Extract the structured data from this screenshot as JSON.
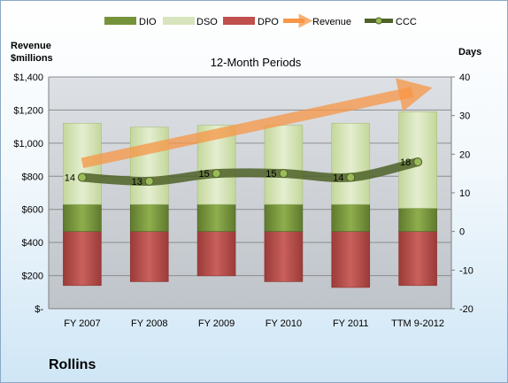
{
  "company": "Rollins",
  "chart_data": {
    "type": "bar",
    "subtype": "stacked-bar-with-lines",
    "title": "12-Month Periods",
    "ylabel_left": [
      "Revenue",
      "$millions"
    ],
    "ylabel_right": "Days",
    "categories": [
      "FY 2007",
      "FY 2008",
      "FY 2009",
      "FY 2010",
      "FY 2011",
      "TTM 9-2012"
    ],
    "y_left": {
      "lim": [
        0,
        1400
      ],
      "ticks": [
        0,
        200,
        400,
        600,
        800,
        1000,
        1200,
        1400
      ],
      "tick_labels": [
        "$-",
        "$200",
        "$400",
        "$600",
        "$800",
        "$1,000",
        "$1,200",
        "$1,400"
      ]
    },
    "y_right": {
      "lim": [
        -20,
        40
      ],
      "ticks": [
        -20,
        -10,
        0,
        10,
        20,
        30,
        40
      ],
      "tick_labels": [
        "-20",
        "-10",
        "0",
        "10",
        "20",
        "30",
        "40"
      ]
    },
    "legend": [
      "DIO",
      "DSO",
      "DPO",
      "Revenue",
      "CCC"
    ],
    "legend_position": "top",
    "colors": {
      "DIO": "#76933c",
      "DSO": "#d7e4bd",
      "DPO": "#c0504d",
      "Revenue": "#f79646",
      "CCC": "#4f6228"
    },
    "bars": [
      {
        "category": "FY 2007",
        "DPO": [
          -14,
          0
        ],
        "DIO": [
          0,
          7
        ],
        "DSO": [
          7,
          28
        ]
      },
      {
        "category": "FY 2008",
        "DPO": [
          -13,
          0
        ],
        "DIO": [
          0,
          7
        ],
        "DSO": [
          7,
          27
        ]
      },
      {
        "category": "FY 2009",
        "DPO": [
          -11.5,
          0
        ],
        "DIO": [
          0,
          7
        ],
        "DSO": [
          7,
          27.5
        ]
      },
      {
        "category": "FY 2010",
        "DPO": [
          -13,
          0
        ],
        "DIO": [
          0,
          7
        ],
        "DSO": [
          7,
          27.5
        ]
      },
      {
        "category": "FY 2011",
        "DPO": [
          -14.5,
          0
        ],
        "DIO": [
          0,
          7
        ],
        "DSO": [
          7,
          28
        ]
      },
      {
        "category": "TTM 9-2012",
        "DPO": [
          -14,
          0
        ],
        "DIO": [
          0,
          6
        ],
        "DSO": [
          6,
          31
        ]
      }
    ],
    "series": [
      {
        "name": "Revenue",
        "axis": "left",
        "values": [
          880,
          1000,
          1080,
          1130,
          1190,
          1320
        ]
      },
      {
        "name": "CCC",
        "axis": "right",
        "values": [
          14,
          13,
          15,
          15,
          14,
          18
        ]
      }
    ],
    "data_labels": {
      "CCC": [
        "14",
        "13",
        "15",
        "15",
        "14",
        "18"
      ]
    },
    "grid": true
  }
}
